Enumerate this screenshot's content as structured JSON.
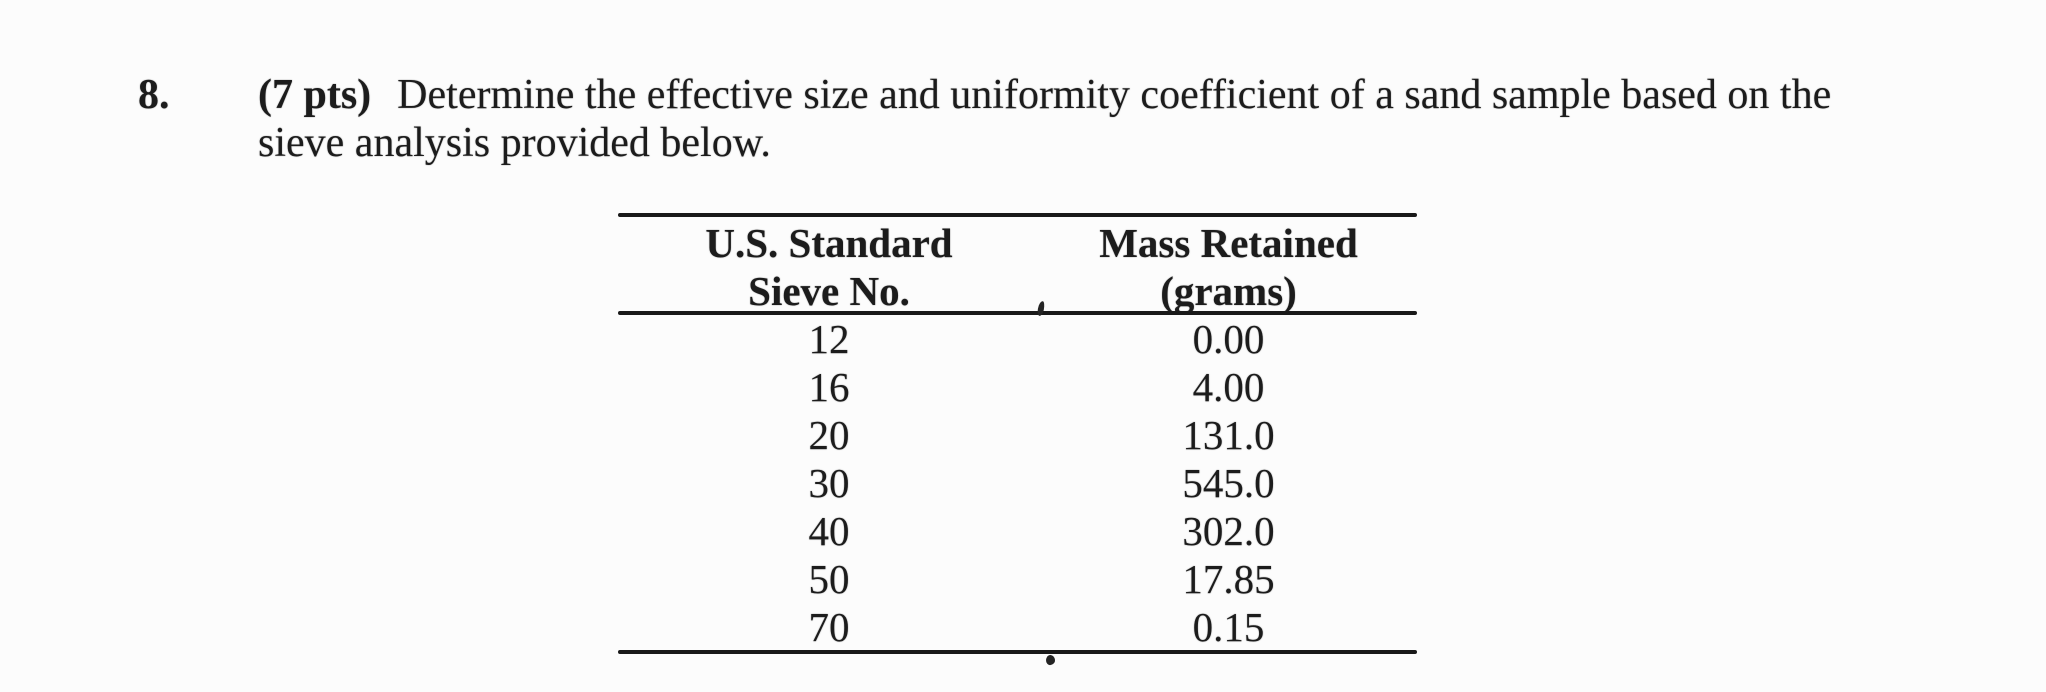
{
  "question": {
    "number": "8.",
    "points": "(7 pts)",
    "line1": "Determine the effective size and uniformity coefficient of a sand sample based on the",
    "line2": "sieve analysis provided below."
  },
  "table": {
    "col1_header": [
      "U.S. Standard",
      "Sieve No."
    ],
    "col2_header": [
      "Mass Retained",
      "(grams)"
    ],
    "rows": [
      {
        "sieve_no": "12",
        "mass_retained": "0.00"
      },
      {
        "sieve_no": "16",
        "mass_retained": "4.00"
      },
      {
        "sieve_no": "20",
        "mass_retained": "131.0"
      },
      {
        "sieve_no": "30",
        "mass_retained": "545.0"
      },
      {
        "sieve_no": "40",
        "mass_retained": "302.0"
      },
      {
        "sieve_no": "50",
        "mass_retained": "17.85"
      },
      {
        "sieve_no": "70",
        "mass_retained": "0.15"
      }
    ]
  },
  "colors": {
    "background": "#fcfcfc",
    "text": "#1c1c1c",
    "rule": "#191919"
  }
}
